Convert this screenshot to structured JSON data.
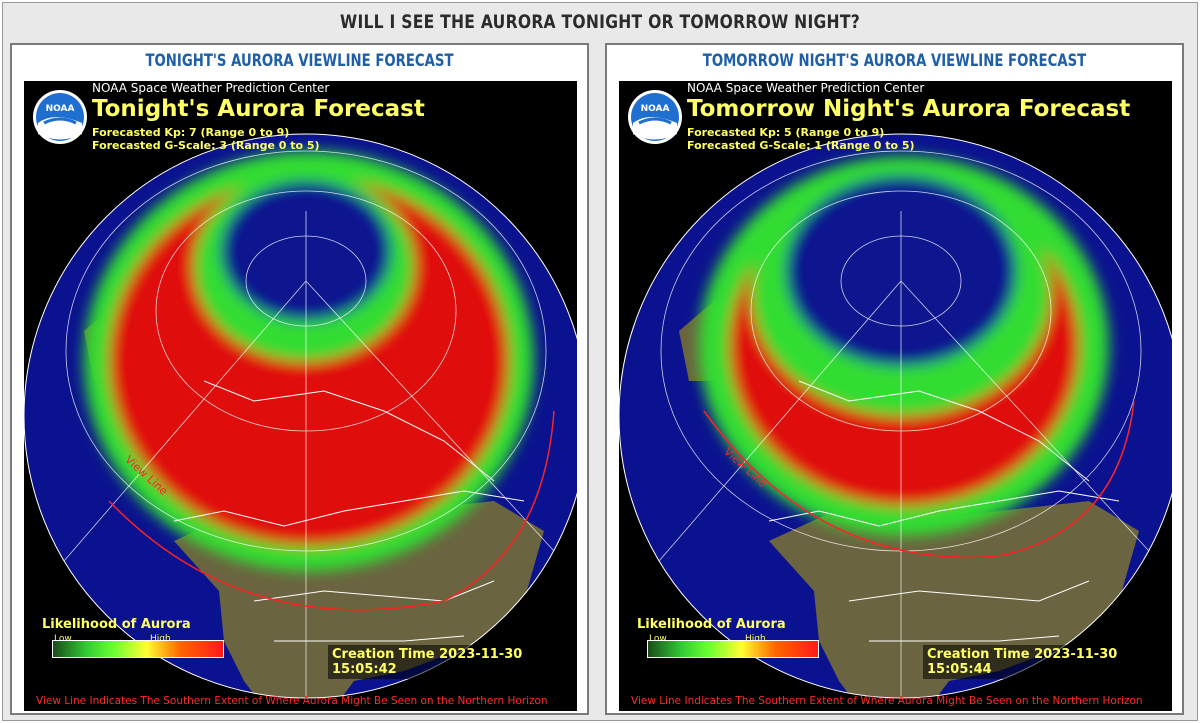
{
  "page": {
    "title": "WILL I SEE THE AURORA TONIGHT OR TOMORROW NIGHT?"
  },
  "colors": {
    "ocean": "#0b128f",
    "land": "#6b6440",
    "aurora_high": "#e01010",
    "aurora_low": "#33dd33",
    "text_yellow": "#ffff66",
    "viewline": "#ff2222",
    "panel_title": "#1e5fa8"
  },
  "panels": [
    {
      "heading": "TONIGHT'S AURORA VIEWLINE FORECAST",
      "org": "NOAA Space Weather Prediction Center",
      "title": "Tonight's Aurora Forecast",
      "kp": "Forecasted Kp: 7 (Range 0 to 9)",
      "gscale": "Forecasted G-Scale: 3 (Range 0 to 5)",
      "legend_title": "Likelihood of Aurora",
      "legend_low": "Low",
      "legend_high": "High",
      "creation": "Creation Time 2023-11-30 15:05:42",
      "footnote": "View Line Indicates The Southern Extent of Where Aurora Might Be Seen on the Northern Horizon",
      "viewline_label": "View Line",
      "logo_text": "NOAA",
      "kp_value": 7,
      "g_scale_value": 3
    },
    {
      "heading": "TOMORROW NIGHT'S AURORA VIEWLINE FORECAST",
      "org": "NOAA Space Weather Prediction Center",
      "title": "Tomorrow Night's Aurora Forecast",
      "kp": "Forecasted Kp: 5 (Range 0 to 9)",
      "gscale": "Forecasted G-Scale: 1 (Range 0 to 5)",
      "legend_title": "Likelihood of Aurora",
      "legend_low": "Low",
      "legend_high": "High",
      "creation": "Creation Time 2023-11-30 15:05:44",
      "footnote": "View Line Indicates The Southern Extent of Where Aurora Might Be Seen on the Northern Horizon",
      "viewline_label": "View Line",
      "logo_text": "NOAA",
      "kp_value": 5,
      "g_scale_value": 1
    }
  ]
}
